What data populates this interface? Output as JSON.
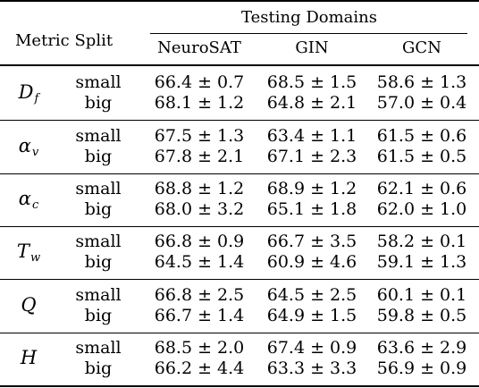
{
  "table": {
    "header": {
      "metric_split": "Metric Split",
      "testing_domains": "Testing Domains",
      "domains": [
        "NeuroSAT",
        "GIN",
        "GCN"
      ]
    },
    "rows": [
      {
        "metric": "D",
        "metric_sub": "f",
        "splits": [
          {
            "split": "small",
            "values": [
              "66.4 ± 0.7",
              "68.5 ± 1.5",
              "58.6 ± 1.3"
            ]
          },
          {
            "split": "big",
            "values": [
              "68.1 ± 1.2",
              "64.8 ± 2.1",
              "57.0 ± 0.4"
            ]
          }
        ]
      },
      {
        "metric": "α",
        "metric_sub": "v",
        "splits": [
          {
            "split": "small",
            "values": [
              "67.5 ± 1.3",
              "63.4 ± 1.1",
              "61.5 ± 0.6"
            ]
          },
          {
            "split": "big",
            "values": [
              "67.8 ± 2.1",
              "67.1 ± 2.3",
              "61.5 ± 0.5"
            ]
          }
        ]
      },
      {
        "metric": "α",
        "metric_sub": "c",
        "splits": [
          {
            "split": "small",
            "values": [
              "68.8 ± 1.2",
              "68.9 ± 1.2",
              "62.1 ± 0.6"
            ]
          },
          {
            "split": "big",
            "values": [
              "68.0 ± 3.2",
              "65.1 ± 1.8",
              "62.0 ± 1.0"
            ]
          }
        ]
      },
      {
        "metric": "T",
        "metric_sub": "w",
        "splits": [
          {
            "split": "small",
            "values": [
              "66.8 ± 0.9",
              "66.7 ± 3.5",
              "58.2 ± 0.1"
            ]
          },
          {
            "split": "big",
            "values": [
              "64.5 ± 1.4",
              "60.9 ± 4.6",
              "59.1 ± 1.3"
            ]
          }
        ]
      },
      {
        "metric": "Q",
        "metric_sub": "",
        "splits": [
          {
            "split": "small",
            "values": [
              "66.8 ± 2.5",
              "64.5 ± 2.5",
              "60.1 ± 0.1"
            ]
          },
          {
            "split": "big",
            "values": [
              "66.7 ± 1.4",
              "64.9 ± 1.5",
              "59.8 ± 0.5"
            ]
          }
        ]
      },
      {
        "metric": "H",
        "metric_sub": "",
        "splits": [
          {
            "split": "small",
            "values": [
              "68.5 ± 2.0",
              "67.4 ± 0.9",
              "63.6 ± 2.9"
            ]
          },
          {
            "split": "big",
            "values": [
              "66.2 ± 4.4",
              "63.3 ± 3.3",
              "56.9 ± 0.9"
            ]
          }
        ]
      }
    ]
  }
}
